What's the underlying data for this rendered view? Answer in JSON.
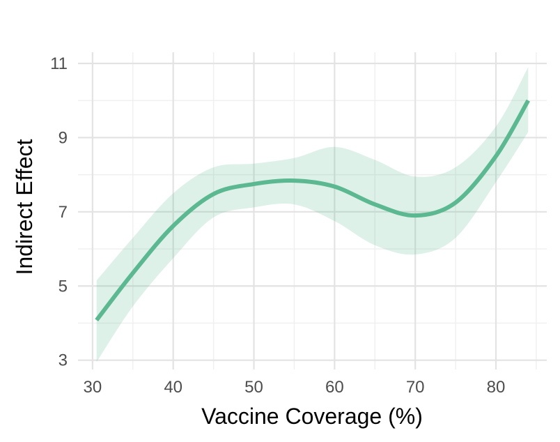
{
  "chart_data": {
    "type": "line",
    "xlabel": "Vaccine Coverage (%)",
    "ylabel": "Indirect Effect",
    "xlim": [
      28.2,
      86.3
    ],
    "ylim": [
      2.75,
      11.3
    ],
    "x_ticks": [
      30,
      40,
      50,
      60,
      70,
      80
    ],
    "y_ticks": [
      3,
      5,
      7,
      9,
      11
    ],
    "grid": true,
    "legend": "none",
    "series": [
      {
        "color": "#5bb891",
        "band_color": "#5bb891",
        "x": [
          30.5,
          35,
          40,
          45,
          50,
          55,
          60,
          65,
          70,
          75,
          80,
          84
        ],
        "y": [
          4.08,
          5.35,
          6.62,
          7.48,
          7.75,
          7.84,
          7.68,
          7.2,
          6.9,
          7.25,
          8.5,
          10.0
        ],
        "lower": [
          2.95,
          4.45,
          5.75,
          6.85,
          7.12,
          7.2,
          6.75,
          6.1,
          5.85,
          6.3,
          7.8,
          9.15
        ],
        "upper": [
          5.15,
          6.3,
          7.5,
          8.2,
          8.3,
          8.45,
          8.75,
          8.4,
          7.95,
          8.2,
          9.3,
          10.9
        ]
      }
    ]
  }
}
